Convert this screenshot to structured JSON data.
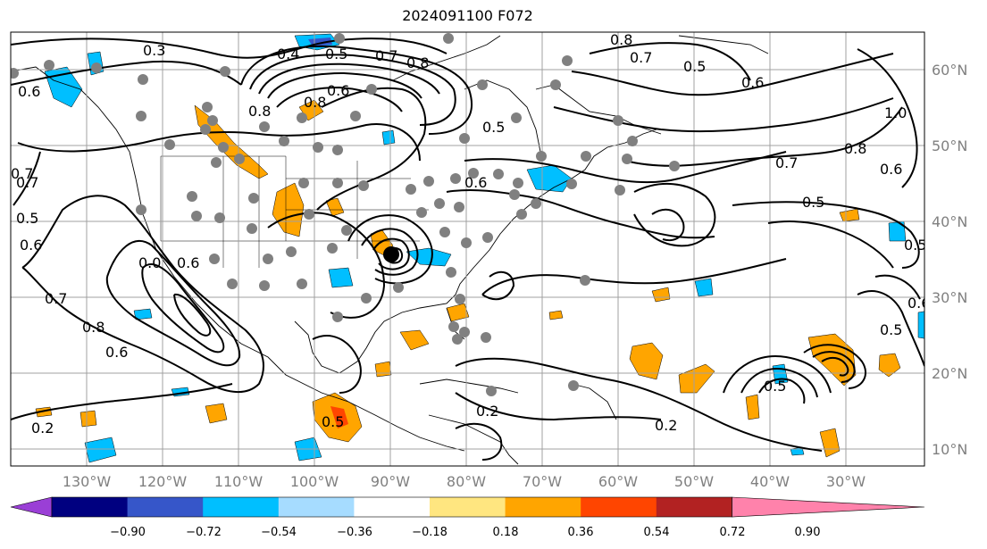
{
  "title": "2024091100 F072",
  "lon_labels": [
    "130°W",
    "120°W",
    "110°W",
    "100°W",
    "90°W",
    "80°W",
    "70°W",
    "60°W",
    "50°W",
    "40°W",
    "30°W"
  ],
  "lat_labels": [
    "60°N",
    "50°N",
    "40°N",
    "30°N",
    "20°N",
    "10°N"
  ],
  "colorbar": {
    "colors": [
      "#9a3fd6",
      "#000080",
      "#3656c9",
      "#00bfff",
      "#a6dcff",
      "#ffffff",
      "#ffe680",
      "#ffa500",
      "#ff4500",
      "#b22222",
      "#ff82ab"
    ],
    "ticks": [
      "−0.90",
      "−0.72",
      "−0.54",
      "−0.36",
      "−0.18",
      "0.18",
      "0.36",
      "0.54",
      "0.72",
      "0.90"
    ]
  },
  "contour_labels": [
    "0.3",
    "0.4",
    "0.5",
    "0.7",
    "0.8",
    "0.6",
    "0.8",
    "0.5",
    "0.8",
    "0.7",
    "0.6",
    "0.5",
    "1.0",
    "0.7",
    "0.8",
    "0.6",
    "0.5",
    "0.5",
    "0.6",
    "0.5",
    "0.6",
    "0.7",
    "0.5",
    "0.6",
    "0.0",
    "0.7",
    "0.8",
    "0.6",
    "0.8",
    "0.7",
    "0.6",
    "0.2",
    "0.2",
    "0.2",
    "0.5",
    "0.5",
    "0.6"
  ],
  "colors": {
    "contour": "#000000",
    "grid": "#a0a0a0",
    "station": "#808080"
  }
}
